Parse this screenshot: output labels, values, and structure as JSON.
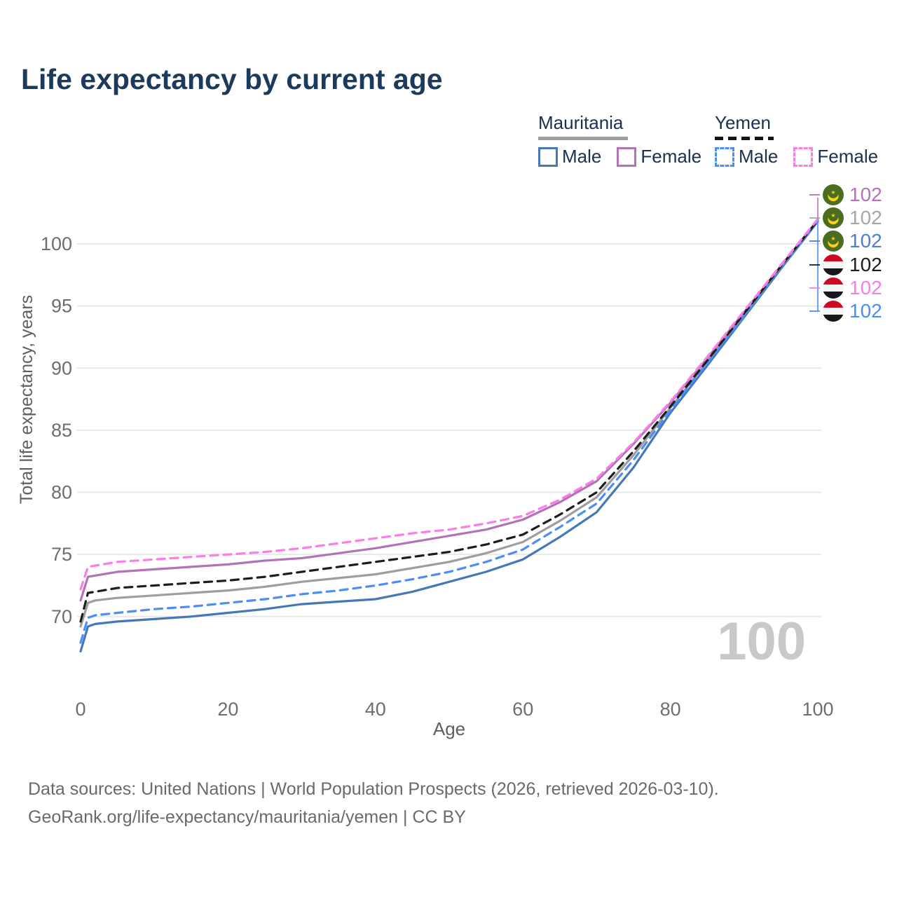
{
  "title": "Life expectancy by current age",
  "legend": {
    "groups": [
      {
        "name": "Mauritania",
        "line_style": "solid",
        "items": [
          {
            "label": "Male"
          },
          {
            "label": "Female"
          }
        ]
      },
      {
        "name": "Yemen",
        "line_style": "dashed",
        "items": [
          {
            "label": "Male"
          },
          {
            "label": "Female"
          }
        ]
      }
    ]
  },
  "colors": {
    "mauritania_male": "#4678b8",
    "mauritania_female": "#b273b8",
    "mauritania_all": "#9e9e9e",
    "yemen_male": "#4b8ef7",
    "yemen_female": "#fb7ee4",
    "yemen_all": "#1d1d1d",
    "grid": "#e8e8e8",
    "axis_text": "#6e6e6e",
    "watermark": "#c9c9c9",
    "title_text": "#1d3a5c",
    "flag_green": "#4c6d1f",
    "flag_yellow": "#ffcf1f",
    "flag_red": "#cf0921",
    "flag_white": "#f5f5f5",
    "flag_black": "#17171c"
  },
  "watermark": "100",
  "end_labels": [
    {
      "flag": "mauritania",
      "value": "102",
      "color": "#b273b8",
      "series": "Mauritania Female"
    },
    {
      "flag": "mauritania",
      "value": "102",
      "color": "#a6a6a6",
      "series": "Mauritania"
    },
    {
      "flag": "mauritania",
      "value": "102",
      "color": "#4f7fc9",
      "series": "Mauritania Male"
    },
    {
      "flag": "yemen",
      "value": "102",
      "color": "#1d1d1d",
      "series": "Yemen"
    },
    {
      "flag": "yemen",
      "value": "102",
      "color": "#fb7ee4",
      "series": "Yemen Female"
    },
    {
      "flag": "yemen",
      "value": "102",
      "color": "#4b8ef7",
      "series": "Yemen Male"
    }
  ],
  "footer": {
    "line1": "Data sources: United Nations | World Population Prospects (2026, retrieved 2026-03-10).",
    "line2": "GeoRank.org/life-expectancy/mauritania/yemen | CC BY"
  },
  "chart_data": {
    "type": "line",
    "title": "Life expectancy by current age",
    "xlabel": "Age",
    "ylabel": "Total life expectancy, years",
    "xlim": [
      0,
      100
    ],
    "ylim": [
      66,
      103.5
    ],
    "xticks": [
      0,
      20,
      40,
      60,
      80,
      100
    ],
    "yticks": [
      70,
      75,
      80,
      85,
      90,
      95,
      100
    ],
    "grid": "horizontal-only",
    "legend_position": "top-right",
    "x": [
      0,
      1,
      2,
      5,
      10,
      15,
      20,
      25,
      30,
      35,
      40,
      45,
      50,
      55,
      60,
      65,
      70,
      75,
      80,
      85,
      90,
      95,
      100
    ],
    "series": [
      {
        "name": "Mauritania Male",
        "country": "Mauritania",
        "sex": "male",
        "dash": false,
        "color": "#4678b8",
        "values": [
          67.2,
          69.2,
          69.4,
          69.6,
          69.8,
          70.0,
          70.3,
          70.6,
          71.0,
          71.2,
          71.4,
          72.0,
          72.8,
          73.6,
          74.6,
          76.4,
          78.4,
          82.0,
          86.4,
          90.2,
          94.1,
          98.0,
          101.8
        ]
      },
      {
        "name": "Mauritania",
        "country": "Mauritania",
        "sex": "both",
        "dash": false,
        "color": "#9e9e9e",
        "values": [
          69.2,
          71.1,
          71.3,
          71.5,
          71.7,
          71.9,
          72.1,
          72.4,
          72.8,
          73.1,
          73.4,
          73.9,
          74.4,
          75.1,
          76.0,
          77.7,
          79.6,
          83.0,
          86.8,
          90.5,
          94.3,
          98.1,
          101.9
        ]
      },
      {
        "name": "Mauritania Female",
        "country": "Mauritania",
        "sex": "female",
        "dash": false,
        "color": "#b273b8",
        "values": [
          71.3,
          73.2,
          73.3,
          73.6,
          73.8,
          74.0,
          74.2,
          74.5,
          74.7,
          75.1,
          75.5,
          76.0,
          76.5,
          77.0,
          77.8,
          79.2,
          80.9,
          83.9,
          87.2,
          90.8,
          94.5,
          98.2,
          101.9
        ]
      },
      {
        "name": "Yemen Male",
        "country": "Yemen",
        "sex": "male",
        "dash": true,
        "color": "#4b8ef7",
        "values": [
          67.9,
          69.9,
          70.1,
          70.3,
          70.6,
          70.8,
          71.1,
          71.4,
          71.8,
          72.1,
          72.5,
          73.0,
          73.6,
          74.4,
          75.4,
          77.2,
          79.1,
          82.6,
          86.6,
          90.4,
          94.2,
          98.1,
          101.8
        ]
      },
      {
        "name": "Yemen",
        "country": "Yemen",
        "sex": "both",
        "dash": true,
        "color": "#1d1d1d",
        "values": [
          69.6,
          71.9,
          72.0,
          72.3,
          72.5,
          72.7,
          72.9,
          73.2,
          73.6,
          74.0,
          74.4,
          74.8,
          75.2,
          75.8,
          76.6,
          78.2,
          80.0,
          83.3,
          86.9,
          90.6,
          94.4,
          98.2,
          101.9
        ]
      },
      {
        "name": "Yemen Female",
        "country": "Yemen",
        "sex": "female",
        "dash": true,
        "color": "#fb7ee4",
        "values": [
          72.2,
          74.0,
          74.1,
          74.4,
          74.6,
          74.8,
          75.0,
          75.2,
          75.5,
          75.9,
          76.3,
          76.7,
          77.0,
          77.5,
          78.1,
          79.4,
          81.1,
          84.0,
          87.3,
          90.9,
          94.6,
          98.3,
          102.0
        ]
      }
    ],
    "end_value_labels": [
      "102",
      "102",
      "102",
      "102",
      "102",
      "102"
    ]
  }
}
